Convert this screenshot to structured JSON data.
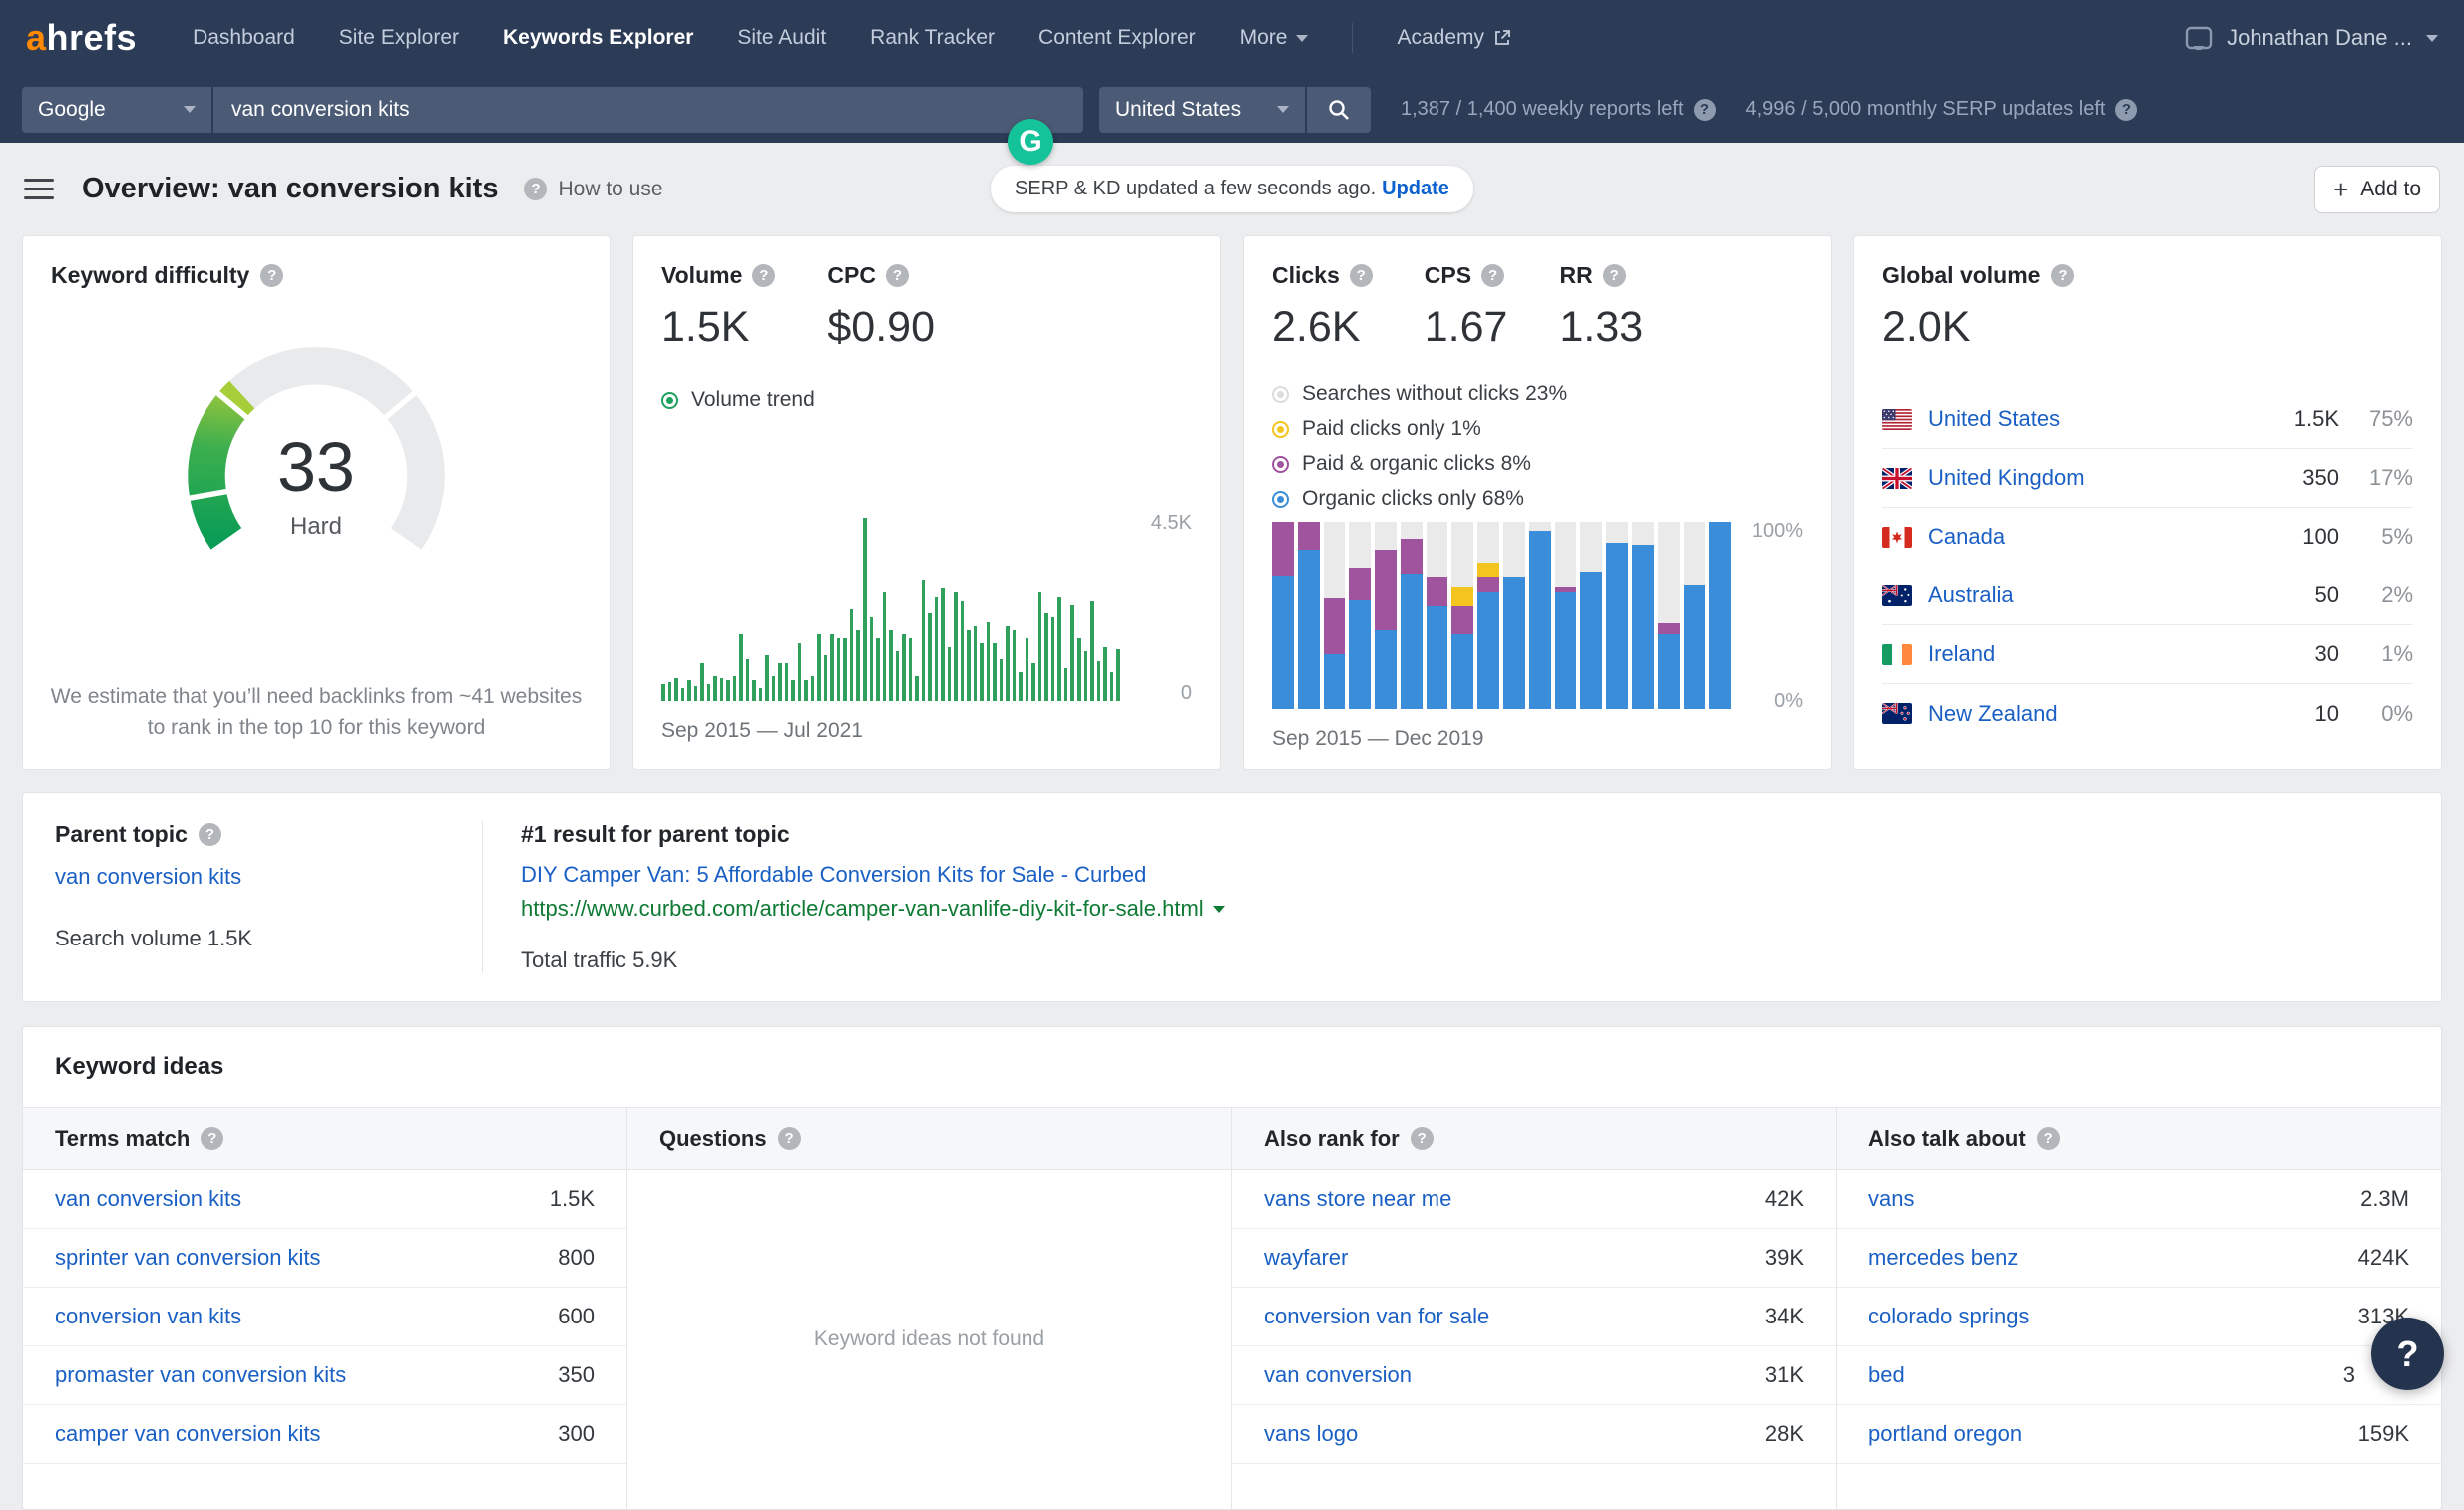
{
  "nav": {
    "logo": "ahrefs",
    "items": [
      "Dashboard",
      "Site Explorer",
      "Keywords Explorer",
      "Site Audit",
      "Rank Tracker",
      "Content Explorer"
    ],
    "active_item": "Keywords Explorer",
    "more_label": "More",
    "academy_label": "Academy",
    "user": "Johnathan Dane ..."
  },
  "search": {
    "engine": "Google",
    "query": "van conversion kits",
    "country": "United States",
    "reports_left": "1,387 / 1,400 weekly reports left",
    "serp_updates_left": "4,996 / 5,000 monthly SERP updates left",
    "grammarly_letter": "G"
  },
  "header": {
    "title": "Overview: van conversion kits",
    "how_to_use": "How to use",
    "update_notice": "SERP & KD updated a few seconds ago.",
    "update_link": "Update",
    "add_to": "Add to"
  },
  "kd": {
    "title": "Keyword difficulty",
    "score": "33",
    "level": "Hard",
    "note": "We estimate that you’ll need backlinks from ~41 websites to rank in the top 10 for this keyword",
    "gauge": {
      "value": 33,
      "max": 100,
      "colors": [
        "#0b9d55",
        "#5bb94a",
        "#a6ce39"
      ],
      "track": "#e9eaec"
    }
  },
  "volume_card": {
    "volume_label": "Volume",
    "volume": "1.5K",
    "cpc_label": "CPC",
    "cpc": "$0.90",
    "trend_label": "Volume trend",
    "y_max": "4.5K",
    "y_min": "0",
    "range": "Sep 2015 — Jul 2021"
  },
  "clicks_card": {
    "metrics": [
      {
        "label": "Clicks",
        "value": "2.6K"
      },
      {
        "label": "CPS",
        "value": "1.67"
      },
      {
        "label": "RR",
        "value": "1.33"
      }
    ],
    "legend": [
      {
        "label": "Searches without clicks 23%",
        "color": "#dcdcdc"
      },
      {
        "label": "Paid clicks only 1%",
        "color": "#f4c51e"
      },
      {
        "label": "Paid & organic clicks 8%",
        "color": "#a0549e"
      },
      {
        "label": "Organic clicks only 68%",
        "color": "#3a8dd8"
      }
    ],
    "y_max": "100%",
    "y_min": "0%",
    "range": "Sep 2015 — Dec 2019"
  },
  "global_card": {
    "title": "Global volume",
    "total": "2.0K",
    "countries": [
      {
        "flag": "us",
        "name": "United States",
        "value": "1.5K",
        "pct": "75%"
      },
      {
        "flag": "gb",
        "name": "United Kingdom",
        "value": "350",
        "pct": "17%"
      },
      {
        "flag": "ca",
        "name": "Canada",
        "value": "100",
        "pct": "5%"
      },
      {
        "flag": "au",
        "name": "Australia",
        "value": "50",
        "pct": "2%"
      },
      {
        "flag": "ie",
        "name": "Ireland",
        "value": "30",
        "pct": "1%"
      },
      {
        "flag": "nz",
        "name": "New Zealand",
        "value": "10",
        "pct": "0%"
      }
    ]
  },
  "parent_topic": {
    "label": "Parent topic",
    "keyword": "van conversion kits",
    "search_volume": "Search volume 1.5K",
    "result_header": "#1 result for parent topic",
    "result_title": "DIY Camper Van: 5 Affordable Conversion Kits for Sale - Curbed",
    "result_url": "https://www.curbed.com/article/camper-van-vanlife-diy-kit-for-sale.html",
    "total_traffic": "Total traffic 5.9K"
  },
  "keyword_ideas": {
    "title": "Keyword ideas",
    "columns": [
      {
        "header": "Terms match",
        "rows": [
          [
            "van conversion kits",
            "1.5K"
          ],
          [
            "sprinter van conversion kits",
            "800"
          ],
          [
            "conversion van kits",
            "600"
          ],
          [
            "promaster van conversion kits",
            "350"
          ],
          [
            "camper van conversion kits",
            "300"
          ]
        ]
      },
      {
        "header": "Questions",
        "rows": [],
        "empty_text": "Keyword ideas not found"
      },
      {
        "header": "Also rank for",
        "rows": [
          [
            "vans store near me",
            "42K"
          ],
          [
            "wayfarer",
            "39K"
          ],
          [
            "conversion van for sale",
            "34K"
          ],
          [
            "van conversion",
            "31K"
          ],
          [
            "vans logo",
            "28K"
          ]
        ]
      },
      {
        "header": "Also talk about",
        "rows": [
          [
            "vans",
            "2.3M"
          ],
          [
            "mercedes benz",
            "424K"
          ],
          [
            "colorado springs",
            "313K"
          ],
          [
            "bed",
            "3"
          ],
          [
            "portland oregon",
            "159K"
          ]
        ]
      }
    ]
  },
  "help_fab": "?",
  "chart_data": [
    {
      "type": "bar",
      "title": "Volume trend",
      "x_range": "Sep 2015 — Jul 2021",
      "ylim": [
        0,
        4500
      ],
      "y_ticks": [
        "4.5K",
        "0"
      ],
      "bar_color": "#2fa15d",
      "values": [
        400,
        450,
        550,
        300,
        500,
        350,
        900,
        400,
        600,
        550,
        500,
        600,
        1600,
        1000,
        500,
        300,
        1100,
        600,
        900,
        900,
        500,
        1400,
        500,
        600,
        1600,
        1100,
        1600,
        1500,
        1500,
        2200,
        1700,
        4400,
        2000,
        1500,
        2600,
        1700,
        1200,
        1600,
        1500,
        600,
        2900,
        2100,
        2500,
        2700,
        1300,
        2600,
        2400,
        1700,
        1800,
        1400,
        1900,
        1400,
        1000,
        1800,
        1700,
        700,
        1500,
        900,
        2600,
        2100,
        2000,
        2500,
        800,
        2300,
        1500,
        1200,
        2400,
        950,
        1300,
        700,
        1250
      ]
    },
    {
      "type": "bar",
      "stacked": true,
      "title": "Clicks distribution",
      "x_range": "Sep 2015 — Dec 2019",
      "ylim": [
        0,
        100
      ],
      "y_ticks": [
        "100%",
        "0%"
      ],
      "remainder_color": "#eaeaea",
      "series": [
        {
          "name": "Organic clicks only",
          "color": "#3a8dd8",
          "values": [
            71,
            85,
            29,
            58,
            42,
            72,
            55,
            40,
            62,
            70,
            95,
            62,
            73,
            89,
            88,
            40,
            66,
            100
          ]
        },
        {
          "name": "Paid & organic clicks",
          "color": "#a0549e",
          "values": [
            29,
            15,
            30,
            17,
            43,
            19,
            15,
            15,
            8,
            0,
            0,
            3,
            0,
            0,
            0,
            6,
            0,
            0
          ]
        },
        {
          "name": "Paid clicks only",
          "color": "#f4c51e",
          "values": [
            0,
            0,
            0,
            0,
            0,
            0,
            0,
            10,
            8,
            0,
            0,
            0,
            0,
            0,
            0,
            0,
            0,
            0
          ]
        }
      ]
    }
  ]
}
